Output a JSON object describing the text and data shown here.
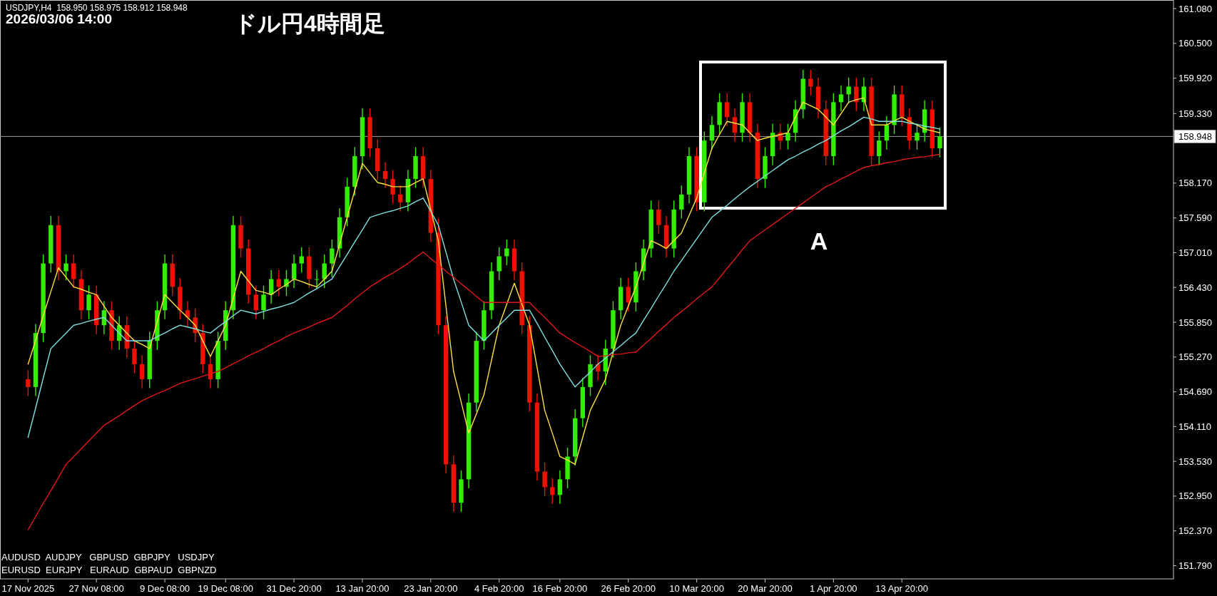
{
  "chart_data": {
    "type": "candlestick",
    "title": "ドル円4時間足",
    "annotations": [
      "USDJPY,H4  158.950 158.975 158.912 158.948",
      "2026/03/06 14:00",
      "AUDUSD  AUDJPY   GBPUSD  GBPJPY   USDJPY",
      "EURUSD  EURJPY   EURAUD  GBPAUD  GBPNZD",
      "A"
    ],
    "categories": [
      "17 Nov 2025",
      null,
      null,
      null,
      null,
      null,
      null,
      null,
      null,
      "27 Nov 08:00",
      null,
      null,
      null,
      null,
      null,
      null,
      null,
      null,
      "9 Dec 08:00",
      null,
      null,
      null,
      null,
      null,
      null,
      null,
      "19 Dec 08:00",
      null,
      null,
      null,
      null,
      null,
      null,
      null,
      null,
      "31 Dec 20:00",
      null,
      null,
      null,
      null,
      null,
      null,
      null,
      null,
      "13 Jan 20:00",
      null,
      null,
      null,
      null,
      null,
      null,
      null,
      null,
      "23 Jan 20:00",
      null,
      null,
      null,
      null,
      null,
      null,
      null,
      null,
      "4 Feb 20:00",
      null,
      null,
      null,
      null,
      null,
      null,
      null,
      "16 Feb 20:00",
      null,
      null,
      null,
      null,
      null,
      null,
      null,
      null,
      "26 Feb 20:00",
      null,
      null,
      null,
      null,
      null,
      null,
      null,
      null,
      "10 Mar 20:00",
      null,
      null,
      null,
      null,
      null,
      null,
      null,
      null,
      "20 Mar 20:00",
      null,
      null,
      null,
      null,
      null,
      null,
      null,
      null,
      "1 Apr 20:00",
      null,
      null,
      null,
      null,
      null,
      null,
      null,
      null,
      "13 Apr 20:00",
      null,
      null,
      null,
      null,
      null
    ],
    "ylim": [
      151.57,
      161.2
    ],
    "yticks": [
      {
        "value": 161.08,
        "label": "161.080"
      },
      {
        "value": 160.5,
        "label": "160.500"
      },
      {
        "value": 159.92,
        "label": "159.920"
      },
      {
        "value": 159.33,
        "label": "159.330"
      },
      {
        "value": 158.17,
        "label": "158.170"
      },
      {
        "value": 157.59,
        "label": "157.590"
      },
      {
        "value": 157.01,
        "label": "157.010"
      },
      {
        "value": 156.43,
        "label": "156.430"
      },
      {
        "value": 155.85,
        "label": "155.850"
      },
      {
        "value": 155.27,
        "label": "155.270"
      },
      {
        "value": 154.69,
        "label": "154.690"
      },
      {
        "value": 154.11,
        "label": "154.110"
      },
      {
        "value": 153.53,
        "label": "153.530"
      },
      {
        "value": 152.95,
        "label": "152.950"
      },
      {
        "value": 152.37,
        "label": "152.370"
      },
      {
        "value": 151.79,
        "label": "151.790"
      }
    ],
    "ref_lines": [
      {
        "axis": "y",
        "value": 158.948,
        "label": "158.948",
        "color": "#9a9a9a"
      }
    ],
    "series": [
      {
        "colors": [
          "#ee1100",
          "#33ee00",
          "#33ee00",
          "#33ee00",
          "#ee1100",
          "#33ee00",
          "#ee1100",
          "#ee1100",
          "#33ee00",
          "#ee1100",
          "#33ee00",
          "#ee1100",
          "#33ee00",
          "#ee1100",
          "#ee1100",
          "#ee1100",
          "#33ee00",
          "#33ee00",
          "#33ee00",
          "#ee1100",
          "#ee1100",
          "#ee1100",
          "#ee1100",
          "#ee1100",
          "#ee1100",
          "#33ee00",
          "#33ee00",
          "#33ee00",
          "#ee1100",
          "#ee1100",
          "#ee1100",
          "#33ee00",
          "#33ee00",
          "#ee1100",
          "#33ee00",
          "#33ee00",
          "#33ee00",
          "#ee1100",
          "#33ee00",
          "#33ee00",
          "#33ee00",
          "#33ee00",
          "#33ee00",
          "#33ee00",
          "#33ee00",
          "#ee1100",
          "#ee1100",
          "#ee1100",
          "#ee1100",
          "#ee1100",
          "#33ee00",
          "#33ee00",
          "#ee1100",
          "#ee1100",
          "#ee1100",
          "#ee1100",
          "#ee1100",
          "#33ee00",
          "#33ee00",
          "#33ee00",
          "#33ee00",
          "#33ee00",
          "#33ee00",
          "#33ee00",
          "#ee1100",
          "#ee1100",
          "#ee1100",
          "#ee1100",
          "#ee1100",
          "#ee1100",
          "#33ee00",
          "#33ee00",
          "#33ee00",
          "#33ee00",
          "#33ee00",
          "#ee1100",
          "#33ee00",
          "#33ee00",
          "#33ee00",
          "#ee1100",
          "#33ee00",
          "#33ee00",
          "#33ee00",
          "#ee1100",
          "#ee1100",
          "#33ee00",
          "#33ee00",
          "#33ee00",
          "#ee1100",
          "#33ee00",
          "#33ee00",
          "#33ee00",
          "#ee1100",
          "#ee1100",
          "#33ee00",
          "#ee1100",
          "#ee1100",
          "#33ee00",
          "#33ee00",
          "#ee1100",
          "#33ee00",
          "#33ee00",
          "#33ee00",
          "#ee1100",
          "#ee1100",
          "#ee1100",
          "#33ee00",
          "#33ee00",
          "#33ee00",
          "#ee1100",
          "#33ee00",
          "#ee1100",
          "#33ee00",
          "#33ee00",
          "#33ee00",
          "#ee1100",
          "#ee1100",
          "#33ee00",
          "#33ee00",
          "#ee1100",
          "#33ee00"
        ],
        "ohlc": [
          [
            154.9,
            155.05,
            154.62,
            154.77
          ],
          [
            154.77,
            155.82,
            154.62,
            155.67
          ],
          [
            155.67,
            156.98,
            155.52,
            156.83
          ],
          [
            156.83,
            157.62,
            156.68,
            157.47
          ],
          [
            157.47,
            157.62,
            156.55,
            156.7
          ],
          [
            156.7,
            156.98,
            156.55,
            156.83
          ],
          [
            156.83,
            156.98,
            156.42,
            156.57
          ],
          [
            156.57,
            156.72,
            155.9,
            156.05
          ],
          [
            156.05,
            156.46,
            155.9,
            156.31
          ],
          [
            156.31,
            156.46,
            155.65,
            155.8
          ],
          [
            155.8,
            156.2,
            155.65,
            156.05
          ],
          [
            156.05,
            156.2,
            155.39,
            155.54
          ],
          [
            155.54,
            155.95,
            155.39,
            155.8
          ],
          [
            155.8,
            155.95,
            155.26,
            155.41
          ],
          [
            155.41,
            155.56,
            155.0,
            155.15
          ],
          [
            155.15,
            155.3,
            154.75,
            154.9
          ],
          [
            154.9,
            155.69,
            154.75,
            155.54
          ],
          [
            155.54,
            156.2,
            155.39,
            156.05
          ],
          [
            156.05,
            156.98,
            155.9,
            156.83
          ],
          [
            156.83,
            156.98,
            156.29,
            156.44
          ],
          [
            156.44,
            156.59,
            155.9,
            156.05
          ],
          [
            156.05,
            156.2,
            155.78,
            155.93
          ],
          [
            155.93,
            156.08,
            155.52,
            155.67
          ],
          [
            155.67,
            155.82,
            155.0,
            155.15
          ],
          [
            155.15,
            155.3,
            154.75,
            154.9
          ],
          [
            154.9,
            155.69,
            154.75,
            155.54
          ],
          [
            155.54,
            156.2,
            155.39,
            156.05
          ],
          [
            156.05,
            157.62,
            155.9,
            157.47
          ],
          [
            157.47,
            157.62,
            156.93,
            157.08
          ],
          [
            157.08,
            157.23,
            156.16,
            156.31
          ],
          [
            156.31,
            156.46,
            155.9,
            156.05
          ],
          [
            156.05,
            156.46,
            155.9,
            156.31
          ],
          [
            156.31,
            156.72,
            156.16,
            156.57
          ],
          [
            156.57,
            156.72,
            156.29,
            156.44
          ],
          [
            156.44,
            156.72,
            156.29,
            156.57
          ],
          [
            156.57,
            156.98,
            156.42,
            156.83
          ],
          [
            156.83,
            157.1,
            156.68,
            156.95
          ],
          [
            156.95,
            157.1,
            156.42,
            156.57
          ],
          [
            156.57,
            156.72,
            156.42,
            156.57
          ],
          [
            156.57,
            156.98,
            156.42,
            156.83
          ],
          [
            156.83,
            157.23,
            156.6,
            157.08
          ],
          [
            157.08,
            157.75,
            156.93,
            157.6
          ],
          [
            157.6,
            158.26,
            157.45,
            158.11
          ],
          [
            158.11,
            158.77,
            157.96,
            158.62
          ],
          [
            158.62,
            159.42,
            158.4,
            159.27
          ],
          [
            159.27,
            159.42,
            158.6,
            158.75
          ],
          [
            158.75,
            158.9,
            158.22,
            158.37
          ],
          [
            158.37,
            158.52,
            158.09,
            158.24
          ],
          [
            158.24,
            158.39,
            157.83,
            157.98
          ],
          [
            157.98,
            158.13,
            157.7,
            157.85
          ],
          [
            157.85,
            158.39,
            157.7,
            158.24
          ],
          [
            158.24,
            158.77,
            158.09,
            158.62
          ],
          [
            158.62,
            158.77,
            158.09,
            158.24
          ],
          [
            158.24,
            158.39,
            157.19,
            157.34
          ],
          [
            157.34,
            157.58,
            155.65,
            155.8
          ],
          [
            155.8,
            155.95,
            153.33,
            153.48
          ],
          [
            153.48,
            153.63,
            152.69,
            152.84
          ],
          [
            152.84,
            153.38,
            152.69,
            153.23
          ],
          [
            153.23,
            154.66,
            153.08,
            154.51
          ],
          [
            154.51,
            155.69,
            154.36,
            155.54
          ],
          [
            155.54,
            156.2,
            155.39,
            156.05
          ],
          [
            156.05,
            156.85,
            155.9,
            156.7
          ],
          [
            156.7,
            157.1,
            156.55,
            156.95
          ],
          [
            156.95,
            157.23,
            156.8,
            157.08
          ],
          [
            157.08,
            157.23,
            156.55,
            156.7
          ],
          [
            156.7,
            156.85,
            155.65,
            155.8
          ],
          [
            155.8,
            155.95,
            154.36,
            154.51
          ],
          [
            154.51,
            154.66,
            153.21,
            153.36
          ],
          [
            153.36,
            153.51,
            152.95,
            153.1
          ],
          [
            153.1,
            153.25,
            152.82,
            152.97
          ],
          [
            152.97,
            153.38,
            152.82,
            153.23
          ],
          [
            153.23,
            153.76,
            153.08,
            153.61
          ],
          [
            153.61,
            154.4,
            153.46,
            154.25
          ],
          [
            154.25,
            154.92,
            154.1,
            154.77
          ],
          [
            154.77,
            155.3,
            154.62,
            155.15
          ],
          [
            155.15,
            155.3,
            154.88,
            155.03
          ],
          [
            155.03,
            155.56,
            154.8,
            155.41
          ],
          [
            155.41,
            156.2,
            155.26,
            156.05
          ],
          [
            156.05,
            156.59,
            155.9,
            156.44
          ],
          [
            156.44,
            156.59,
            156.03,
            156.18
          ],
          [
            156.18,
            156.85,
            156.03,
            156.7
          ],
          [
            156.7,
            157.23,
            156.55,
            157.08
          ],
          [
            157.08,
            157.88,
            156.93,
            157.73
          ],
          [
            157.73,
            157.88,
            157.32,
            157.47
          ],
          [
            157.47,
            157.62,
            156.93,
            157.08
          ],
          [
            157.08,
            157.88,
            156.93,
            157.73
          ],
          [
            157.73,
            158.13,
            157.58,
            157.98
          ],
          [
            157.98,
            158.77,
            157.83,
            158.62
          ],
          [
            158.62,
            158.77,
            157.7,
            157.85
          ],
          [
            157.85,
            159.03,
            157.7,
            158.88
          ],
          [
            158.88,
            159.29,
            158.73,
            159.14
          ],
          [
            159.14,
            159.67,
            158.99,
            159.52
          ],
          [
            159.52,
            159.67,
            159.12,
            159.27
          ],
          [
            159.27,
            159.42,
            158.86,
            159.01
          ],
          [
            159.01,
            159.67,
            158.86,
            159.52
          ],
          [
            159.52,
            159.67,
            158.86,
            159.01
          ],
          [
            159.01,
            159.16,
            158.09,
            158.24
          ],
          [
            158.24,
            158.77,
            158.09,
            158.62
          ],
          [
            158.62,
            159.16,
            158.47,
            159.01
          ],
          [
            159.01,
            159.16,
            158.73,
            158.88
          ],
          [
            158.88,
            159.16,
            158.73,
            159.01
          ],
          [
            159.01,
            159.55,
            158.86,
            159.4
          ],
          [
            159.4,
            160.06,
            159.25,
            159.91
          ],
          [
            159.91,
            160.06,
            159.63,
            159.78
          ],
          [
            159.78,
            159.93,
            159.25,
            159.4
          ],
          [
            159.4,
            159.55,
            158.47,
            158.62
          ],
          [
            158.62,
            159.67,
            158.47,
            159.52
          ],
          [
            159.52,
            159.8,
            159.37,
            159.65
          ],
          [
            159.65,
            159.93,
            159.5,
            159.78
          ],
          [
            159.78,
            159.93,
            159.37,
            159.52
          ],
          [
            159.52,
            159.93,
            159.37,
            159.78
          ],
          [
            159.78,
            159.93,
            158.47,
            158.62
          ],
          [
            158.62,
            159.03,
            158.47,
            158.88
          ],
          [
            158.88,
            159.29,
            158.73,
            159.14
          ],
          [
            159.14,
            159.8,
            158.99,
            159.65
          ],
          [
            159.65,
            159.8,
            159.12,
            159.27
          ],
          [
            159.27,
            159.42,
            158.73,
            158.88
          ],
          [
            158.88,
            159.16,
            158.73,
            159.01
          ],
          [
            159.01,
            159.55,
            158.86,
            159.4
          ],
          [
            159.4,
            159.55,
            158.6,
            158.75
          ],
          [
            158.75,
            159.1,
            158.6,
            158.95
          ]
        ]
      },
      {
        "type": "line",
        "color": "#ffe040",
        "values": [
          155.15,
          155.55,
          155.96,
          156.36,
          156.76,
          156.6,
          156.44,
          156.4,
          156.35,
          156.31,
          156.12,
          155.93,
          155.8,
          155.67,
          155.54,
          155.48,
          155.41,
          155.86,
          156.31,
          156.18,
          156.05,
          155.93,
          155.8,
          155.54,
          155.28,
          155.54,
          155.8,
          156.25,
          156.7,
          156.54,
          156.38,
          156.35,
          156.31,
          156.4,
          156.48,
          156.57,
          156.53,
          156.48,
          156.44,
          156.57,
          156.7,
          157.15,
          157.6,
          158.05,
          158.5,
          158.34,
          158.18,
          158.15,
          158.11,
          158.11,
          158.11,
          158.18,
          158.24,
          157.73,
          157.21,
          156.12,
          155.03,
          154.52,
          154.0,
          154.32,
          154.64,
          155.22,
          155.8,
          156.15,
          156.5,
          156.15,
          155.8,
          155.09,
          154.38,
          154.0,
          153.61,
          153.55,
          153.48,
          153.93,
          154.38,
          154.64,
          154.9,
          155.35,
          155.8,
          156.12,
          156.44,
          156.83,
          157.21,
          157.15,
          157.08,
          157.21,
          157.34,
          157.63,
          157.92,
          158.34,
          158.75,
          158.98,
          159.2,
          159.17,
          159.14,
          159.01,
          158.88,
          158.92,
          158.95,
          158.98,
          159.01,
          159.27,
          159.52,
          159.46,
          159.4,
          159.27,
          159.14,
          159.33,
          159.52,
          159.56,
          159.59,
          159.14,
          159.14,
          159.14,
          159.21,
          159.27,
          159.2,
          159.14,
          159.07,
          159.04,
          159.01
        ]
      },
      {
        "type": "line",
        "color": "#80e0e0",
        "values": [
          153.93,
          154.42,
          154.92,
          155.41,
          155.54,
          155.67,
          155.8,
          155.83,
          155.87,
          155.9,
          155.93,
          155.8,
          155.67,
          155.54,
          155.54,
          155.54,
          155.54,
          155.61,
          155.67,
          155.74,
          155.8,
          155.77,
          155.74,
          155.7,
          155.67,
          155.77,
          155.86,
          155.96,
          156.05,
          156.02,
          155.99,
          156.03,
          156.07,
          156.1,
          156.14,
          156.18,
          156.26,
          156.34,
          156.41,
          156.49,
          156.57,
          156.78,
          156.98,
          157.19,
          157.39,
          157.6,
          157.64,
          157.68,
          157.71,
          157.75,
          157.79,
          157.86,
          157.92,
          157.7,
          157.47,
          157.02,
          156.57,
          156.19,
          155.8,
          155.67,
          155.54,
          155.67,
          155.8,
          155.92,
          156.05,
          156.05,
          156.05,
          155.83,
          155.6,
          155.38,
          155.15,
          154.96,
          154.77,
          154.9,
          155.02,
          155.15,
          155.25,
          155.36,
          155.46,
          155.57,
          155.67,
          155.88,
          156.08,
          156.29,
          156.49,
          156.7,
          156.88,
          157.06,
          157.24,
          157.42,
          157.6,
          157.7,
          157.8,
          157.91,
          158.01,
          158.11,
          158.2,
          158.29,
          158.38,
          158.47,
          158.56,
          158.62,
          158.69,
          158.75,
          158.82,
          158.88,
          158.96,
          159.04,
          159.11,
          159.19,
          159.27,
          159.24,
          159.2,
          159.2,
          159.2,
          159.2,
          159.17,
          159.15,
          159.12,
          159.1,
          159.07
        ]
      },
      {
        "type": "line",
        "color": "#e01818",
        "values": [
          152.39,
          152.61,
          152.83,
          153.04,
          153.26,
          153.48,
          153.61,
          153.74,
          153.87,
          154.0,
          154.13,
          154.21,
          154.29,
          154.38,
          154.46,
          154.54,
          154.6,
          154.66,
          154.71,
          154.77,
          154.83,
          154.87,
          154.91,
          154.95,
          154.99,
          155.03,
          155.09,
          155.16,
          155.22,
          155.29,
          155.35,
          155.41,
          155.48,
          155.54,
          155.61,
          155.67,
          155.72,
          155.77,
          155.83,
          155.88,
          155.93,
          156.03,
          156.13,
          156.24,
          156.34,
          156.44,
          156.52,
          156.6,
          156.67,
          156.75,
          156.83,
          156.93,
          157.02,
          156.91,
          156.81,
          156.7,
          156.6,
          156.49,
          156.39,
          156.28,
          156.18,
          156.18,
          156.18,
          156.18,
          156.18,
          156.18,
          156.18,
          156.05,
          155.93,
          155.8,
          155.67,
          155.59,
          155.51,
          155.44,
          155.36,
          155.28,
          155.29,
          155.31,
          155.32,
          155.34,
          155.35,
          155.47,
          155.58,
          155.7,
          155.81,
          155.93,
          156.03,
          156.13,
          156.24,
          156.34,
          156.44,
          156.59,
          156.75,
          156.9,
          157.06,
          157.21,
          157.3,
          157.39,
          157.48,
          157.57,
          157.66,
          157.75,
          157.84,
          157.93,
          158.02,
          158.11,
          158.17,
          158.24,
          158.3,
          158.37,
          158.43,
          158.46,
          158.48,
          158.51,
          158.53,
          158.56,
          158.58,
          158.6,
          158.61,
          158.63,
          158.65
        ]
      }
    ]
  }
}
